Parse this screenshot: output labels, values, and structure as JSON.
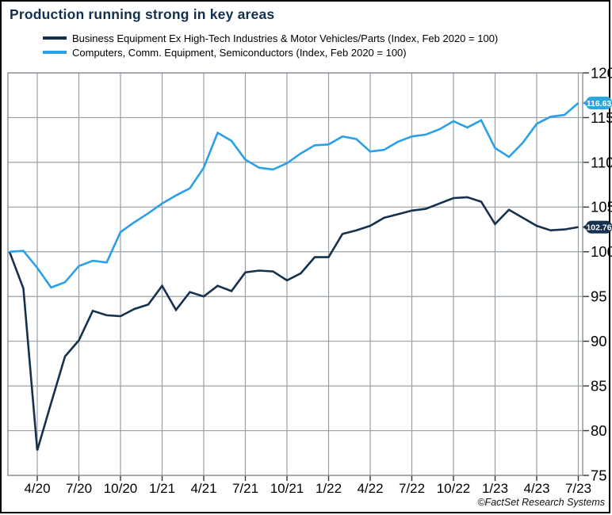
{
  "title": "Production running strong in key areas",
  "credit": "©FactSet Research Systems",
  "colors": {
    "navy": "#16314d",
    "blue": "#2b9fe8",
    "badge_blue": "#29a8e0",
    "badge_navy": "#16314d",
    "grid": "#98a0a6",
    "plot_border": "#8a9197",
    "tick": "#333333",
    "title_text": "#12304e",
    "axis_text": "#000000"
  },
  "legend": {
    "items": [
      {
        "label": "Business Equipment Ex High-Tech Industries & Motor Vehicles/Parts (Index, Feb 2020 = 100)",
        "color": "#16314d"
      },
      {
        "label": "Computers, Comm. Equipment, Semiconductors (Index, Feb 2020 = 100)",
        "color": "#2b9fe8"
      }
    ]
  },
  "chart_data": {
    "type": "line",
    "title": "Production running strong in key areas",
    "xlabel": "",
    "ylabel": "",
    "ylim": [
      75,
      120
    ],
    "grid": true,
    "legend_position": "top-left",
    "y_tick_labels": [
      "120",
      "115",
      "110",
      "105",
      "100",
      "95",
      "90",
      "85",
      "80",
      "75"
    ],
    "y_tick_values": [
      120,
      115,
      110,
      105,
      100,
      95,
      90,
      85,
      80,
      75
    ],
    "x_months": [
      "2/20",
      "3/20",
      "4/20",
      "5/20",
      "6/20",
      "7/20",
      "8/20",
      "9/20",
      "10/20",
      "11/20",
      "12/20",
      "1/21",
      "2/21",
      "3/21",
      "4/21",
      "5/21",
      "6/21",
      "7/21",
      "8/21",
      "9/21",
      "10/21",
      "11/21",
      "12/21",
      "1/22",
      "2/22",
      "3/22",
      "4/22",
      "5/22",
      "6/22",
      "7/22",
      "8/22",
      "9/22",
      "10/22",
      "11/22",
      "12/22",
      "1/23",
      "2/23",
      "3/23",
      "4/23",
      "5/23",
      "6/23",
      "7/23"
    ],
    "x_tick_labels": [
      "4/20",
      "7/20",
      "10/20",
      "1/21",
      "4/21",
      "7/21",
      "10/21",
      "1/22",
      "4/22",
      "7/22",
      "10/22",
      "1/23",
      "4/23",
      "7/23"
    ],
    "x_tick_month_indices": [
      2,
      5,
      8,
      11,
      14,
      17,
      20,
      23,
      26,
      29,
      32,
      35,
      38,
      41
    ],
    "series": [
      {
        "name": "Business Equipment Ex High-Tech Industries & Motor Vehicles/Parts (Index, Feb 2020 = 100)",
        "color": "#16314d",
        "end_label": "102.76",
        "badge_color": "#16314d",
        "values": [
          100.0,
          95.9,
          77.8,
          83.1,
          88.3,
          90.1,
          93.4,
          92.9,
          92.8,
          93.6,
          94.1,
          96.2,
          93.5,
          95.5,
          95.0,
          96.2,
          95.6,
          97.7,
          97.9,
          97.8,
          96.8,
          97.6,
          99.4,
          99.4,
          102.0,
          102.4,
          102.9,
          103.8,
          104.2,
          104.6,
          104.8,
          105.4,
          106.0,
          106.1,
          105.6,
          103.1,
          104.7,
          103.8,
          102.9,
          102.4,
          102.5,
          102.76
        ]
      },
      {
        "name": "Computers, Comm. Equipment, Semiconductors (Index, Feb 2020 = 100)",
        "color": "#2b9fe8",
        "end_label": "116.63",
        "badge_color": "#29a8e0",
        "values": [
          100.0,
          100.1,
          98.2,
          96.0,
          96.6,
          98.4,
          99.0,
          98.8,
          102.2,
          103.3,
          104.3,
          105.4,
          106.3,
          107.1,
          109.4,
          113.3,
          112.4,
          110.3,
          109.4,
          109.2,
          109.9,
          111.0,
          111.9,
          112.0,
          112.9,
          112.6,
          111.2,
          111.4,
          112.3,
          112.9,
          113.1,
          113.7,
          114.6,
          113.9,
          114.7,
          111.6,
          110.6,
          112.2,
          114.3,
          115.1,
          115.3,
          116.63
        ]
      }
    ]
  }
}
